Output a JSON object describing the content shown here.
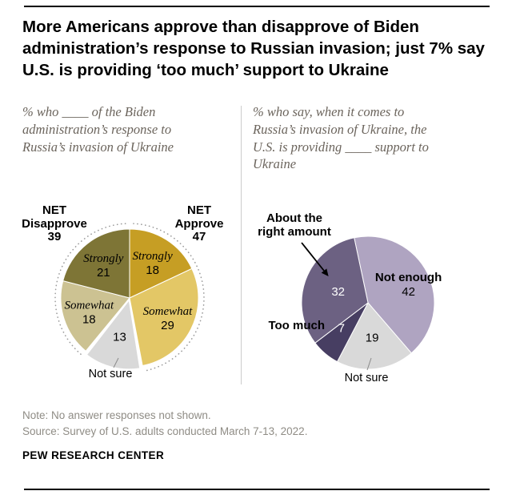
{
  "title": "More Americans approve than disapprove of Biden administration’s response to Russian invasion; just 7% say U.S. is providing ‘too much’ support to Ukraine",
  "panels": {
    "left": {
      "subtitle": "% who ____ of the Biden administration’s response to Russia’s invasion of Ukraine",
      "not_sure_label": "Not sure"
    },
    "right": {
      "subtitle": "% who say, when it comes to Russia’s invasion of Ukraine, the U.S. is providing ____ support to Ukraine",
      "about_label_line1": "About the",
      "about_label_line2": "right amount",
      "too_much_label": "Too much",
      "not_sure_label": "Not sure"
    }
  },
  "chart_data": [
    {
      "type": "pie",
      "title": "% who ____ of the Biden administration’s response to Russia’s invasion of Ukraine",
      "legend_position": "labels-inside",
      "slices": [
        {
          "label": "Strongly approve",
          "word": "Strongly",
          "value": 18,
          "color": "#C69E24"
        },
        {
          "label": "Somewhat approve",
          "word": "Somewhat",
          "value": 29,
          "color": "#E3C766"
        },
        {
          "label": "Not sure",
          "word": "Not sure",
          "value": 13,
          "color": "#D9D9D9"
        },
        {
          "label": "Somewhat disapprove",
          "word": "Somewhat",
          "value": 18,
          "color": "#CCC292"
        },
        {
          "label": "Strongly disapprove",
          "word": "Strongly",
          "value": 21,
          "color": "#7E7536"
        }
      ],
      "nets": [
        {
          "prefix": "NET",
          "label": "Approve",
          "value": 47
        },
        {
          "prefix": "NET",
          "label": "Disapprove",
          "value": 39
        }
      ]
    },
    {
      "type": "pie",
      "title": "% who say, when it comes to Russia’s invasion of Ukraine, the U.S. is providing ____ support to Ukraine",
      "legend_position": "labels-inside",
      "slices": [
        {
          "label": "Not enough",
          "value": 42,
          "color": "#AFA4C1"
        },
        {
          "label": "Not sure",
          "value": 19,
          "color": "#D9D9D9"
        },
        {
          "label": "Too much",
          "value": 7,
          "color": "#473E62"
        },
        {
          "label": "About the right amount",
          "value": 32,
          "color": "#6C6182"
        }
      ]
    }
  ],
  "footer": {
    "note": "Note: No answer responses not shown.",
    "source": "Source: Survey of U.S. adults conducted March 7-13, 2022.",
    "brand": "PEW RESEARCH CENTER"
  }
}
